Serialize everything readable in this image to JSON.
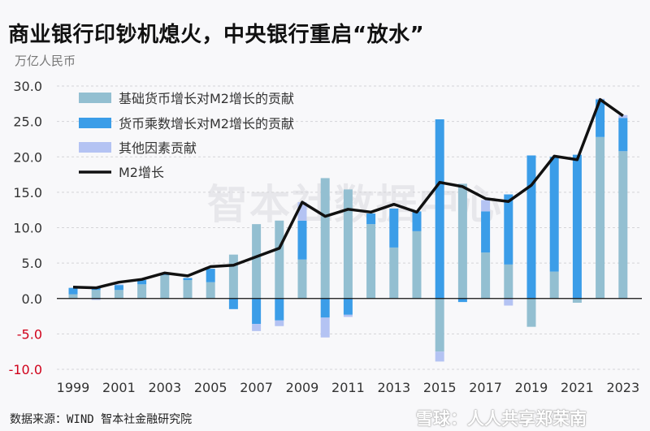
{
  "title": "商业银行印钞机熄火，中央银行重启“放水”",
  "unit_label": "万亿人民币",
  "source": "数据来源：WIND 智本社金融研究院",
  "watermark_center": "智本社数据中心",
  "watermark_corner": "雪球：人人共享郑荣南",
  "chart_data": {
    "type": "bar",
    "stacked": true,
    "title": "",
    "xlabel": "",
    "ylabel": "万亿人民币",
    "ylim": [
      -10,
      30
    ],
    "yticks": [
      "30.0",
      "25.0",
      "20.0",
      "15.0",
      "10.0",
      "5.0",
      "0.0",
      "-5.0",
      "-10.0"
    ],
    "negative_tick_color": "#d0021b",
    "grid": true,
    "legend_position": "top-left",
    "categories": [
      1999,
      2000,
      2001,
      2002,
      2003,
      2004,
      2005,
      2006,
      2007,
      2008,
      2009,
      2010,
      2011,
      2012,
      2013,
      2014,
      2015,
      2016,
      2017,
      2018,
      2019,
      2020,
      2021,
      2022,
      2023
    ],
    "xtick_labels": [
      "1999",
      "2001",
      "2003",
      "2005",
      "2007",
      "2009",
      "2011",
      "2013",
      "2015",
      "2017",
      "2019",
      "2021",
      "2023"
    ],
    "series": [
      {
        "name": "基础货币增长对M2增长的贡献",
        "type": "bar",
        "color": "#93bfd1",
        "values": [
          0.6,
          1.2,
          1.2,
          2.0,
          3.3,
          2.6,
          2.3,
          6.2,
          10.5,
          11.0,
          5.5,
          17.0,
          15.4,
          10.5,
          7.2,
          9.5,
          -7.5,
          16.2,
          6.5,
          4.8,
          -4.0,
          3.8,
          -0.6,
          22.8,
          20.8
        ]
      },
      {
        "name": "货币乘数增长对M2增长的贡献",
        "type": "bar",
        "color": "#3b9de8",
        "values": [
          0.9,
          0.3,
          0.7,
          0.6,
          0.1,
          0.3,
          1.9,
          -1.5,
          -3.6,
          -3.1,
          5.5,
          -2.7,
          -2.3,
          1.5,
          5.5,
          2.8,
          25.3,
          -0.5,
          5.8,
          9.9,
          20.2,
          16.2,
          20.3,
          5.3,
          4.7
        ]
      },
      {
        "name": "其他因素贡献",
        "type": "bar",
        "color": "#b4c3f3",
        "values": [
          0.0,
          -0.2,
          0.1,
          0.0,
          0.0,
          0.0,
          0.0,
          0.0,
          -1.0,
          -0.8,
          2.6,
          -2.8,
          -0.3,
          0.0,
          0.0,
          0.0,
          -1.4,
          0.0,
          1.6,
          -1.0,
          0.0,
          0.0,
          0.0,
          0.1,
          0.4
        ]
      },
      {
        "name": "M2增长",
        "type": "line",
        "color": "#111111",
        "values": [
          1.6,
          1.5,
          2.3,
          2.7,
          3.6,
          3.2,
          4.5,
          4.7,
          5.9,
          7.1,
          13.6,
          11.6,
          12.6,
          12.2,
          13.3,
          12.2,
          16.4,
          15.8,
          14.1,
          13.7,
          16.0,
          20.1,
          19.6,
          28.1,
          25.8
        ]
      }
    ]
  }
}
